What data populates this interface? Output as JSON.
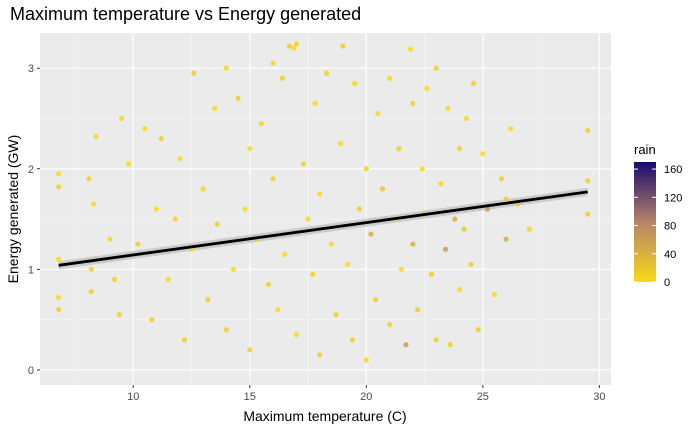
{
  "chart_data": {
    "type": "scatter",
    "title": "Maximum temperature vs Energy generated",
    "xlabel": "Maximum temperature (C)",
    "ylabel": "Energy generated (GW)",
    "xlim": [
      6.0,
      30.5
    ],
    "ylim": [
      -0.15,
      3.35
    ],
    "x_ticks": [
      10,
      15,
      20,
      25,
      30
    ],
    "y_ticks": [
      0,
      1,
      2,
      3
    ],
    "grid": true,
    "background": "#ebebeb",
    "legend": {
      "title": "rain",
      "placement": "right",
      "ticks": [
        0,
        40,
        80,
        120,
        160
      ],
      "range": [
        0,
        170
      ],
      "color_low": "#f7d917",
      "color_mid": "#b5846a",
      "color_high": "#1a0a6e"
    },
    "trend_line": {
      "x": [
        6.8,
        29.5
      ],
      "y": [
        1.04,
        1.77
      ],
      "color": "#000000",
      "ribbon_color": "#bdbdbd"
    },
    "series": [
      {
        "points": [
          [
            6.8,
            1.95
          ],
          [
            6.8,
            1.82
          ],
          [
            6.8,
            0.72
          ],
          [
            6.8,
            0.6
          ],
          [
            6.8,
            1.1
          ],
          [
            8.2,
            0.78
          ],
          [
            8.4,
            2.32
          ],
          [
            8.1,
            1.9
          ],
          [
            8.3,
            1.65
          ],
          [
            8.2,
            1.0
          ],
          [
            9.0,
            1.3
          ],
          [
            9.2,
            0.9
          ],
          [
            9.5,
            2.5
          ],
          [
            9.4,
            0.55
          ],
          [
            9.8,
            2.05
          ],
          [
            10.2,
            1.25
          ],
          [
            10.5,
            2.4
          ],
          [
            10.8,
            0.5
          ],
          [
            11.0,
            1.6
          ],
          [
            11.2,
            2.3
          ],
          [
            11.5,
            0.9
          ],
          [
            11.8,
            1.5
          ],
          [
            12.0,
            2.1
          ],
          [
            12.2,
            0.3
          ],
          [
            12.5,
            1.2
          ],
          [
            12.6,
            2.95
          ],
          [
            13.0,
            1.8
          ],
          [
            13.2,
            0.7
          ],
          [
            13.5,
            2.6
          ],
          [
            13.6,
            1.45
          ],
          [
            14.0,
            3.0
          ],
          [
            14.0,
            0.4
          ],
          [
            14.3,
            1.0
          ],
          [
            14.5,
            2.7
          ],
          [
            14.8,
            1.6
          ],
          [
            15.0,
            0.2
          ],
          [
            15.0,
            2.2
          ],
          [
            15.3,
            1.3
          ],
          [
            15.5,
            2.45
          ],
          [
            15.8,
            0.85
          ],
          [
            16.0,
            3.05
          ],
          [
            16.0,
            1.9
          ],
          [
            16.2,
            0.6
          ],
          [
            16.4,
            2.9
          ],
          [
            16.5,
            1.15
          ],
          [
            16.7,
            3.22
          ],
          [
            16.9,
            3.2
          ],
          [
            17.0,
            3.24
          ],
          [
            17.0,
            0.35
          ],
          [
            17.3,
            2.05
          ],
          [
            17.5,
            1.5
          ],
          [
            17.7,
            0.95
          ],
          [
            17.8,
            2.65
          ],
          [
            18.0,
            0.15
          ],
          [
            18.0,
            1.75
          ],
          [
            18.3,
            2.95
          ],
          [
            18.5,
            1.25
          ],
          [
            18.7,
            0.55
          ],
          [
            18.9,
            2.25
          ],
          [
            19.0,
            3.22
          ],
          [
            19.2,
            1.05
          ],
          [
            19.4,
            0.3
          ],
          [
            19.5,
            2.85
          ],
          [
            19.7,
            1.6
          ],
          [
            20.0,
            0.1
          ],
          [
            20.0,
            2.0
          ],
          [
            20.2,
            1.35
          ],
          [
            20.4,
            0.7
          ],
          [
            20.5,
            2.55
          ],
          [
            20.7,
            1.8
          ],
          [
            21.0,
            2.9
          ],
          [
            21.0,
            0.45
          ],
          [
            21.2,
            1.5
          ],
          [
            21.4,
            2.2
          ],
          [
            21.5,
            1.0
          ],
          [
            21.7,
            0.25
          ],
          [
            21.9,
            3.19
          ],
          [
            22.0,
            2.65
          ],
          [
            22.0,
            1.25
          ],
          [
            22.2,
            0.6
          ],
          [
            22.4,
            2.0
          ],
          [
            22.5,
            1.55
          ],
          [
            22.6,
            2.8
          ],
          [
            22.8,
            0.95
          ],
          [
            23.0,
            3.0
          ],
          [
            23.0,
            0.3
          ],
          [
            23.2,
            1.85
          ],
          [
            23.4,
            1.2
          ],
          [
            23.5,
            2.6
          ],
          [
            23.6,
            0.25
          ],
          [
            23.8,
            1.5
          ],
          [
            24.0,
            2.2
          ],
          [
            24.0,
            0.8
          ],
          [
            24.2,
            1.4
          ],
          [
            24.3,
            2.5
          ],
          [
            24.5,
            1.05
          ],
          [
            24.6,
            2.85
          ],
          [
            24.8,
            0.4
          ],
          [
            25.0,
            2.15
          ],
          [
            25.2,
            1.6
          ],
          [
            25.5,
            0.75
          ],
          [
            25.8,
            1.9
          ],
          [
            26.0,
            1.3
          ],
          [
            26.0,
            1.7
          ],
          [
            26.2,
            2.4
          ],
          [
            26.5,
            1.65
          ],
          [
            27.0,
            1.4
          ],
          [
            29.5,
            2.38
          ],
          [
            29.5,
            1.88
          ],
          [
            29.5,
            1.55
          ]
        ]
      }
    ]
  }
}
